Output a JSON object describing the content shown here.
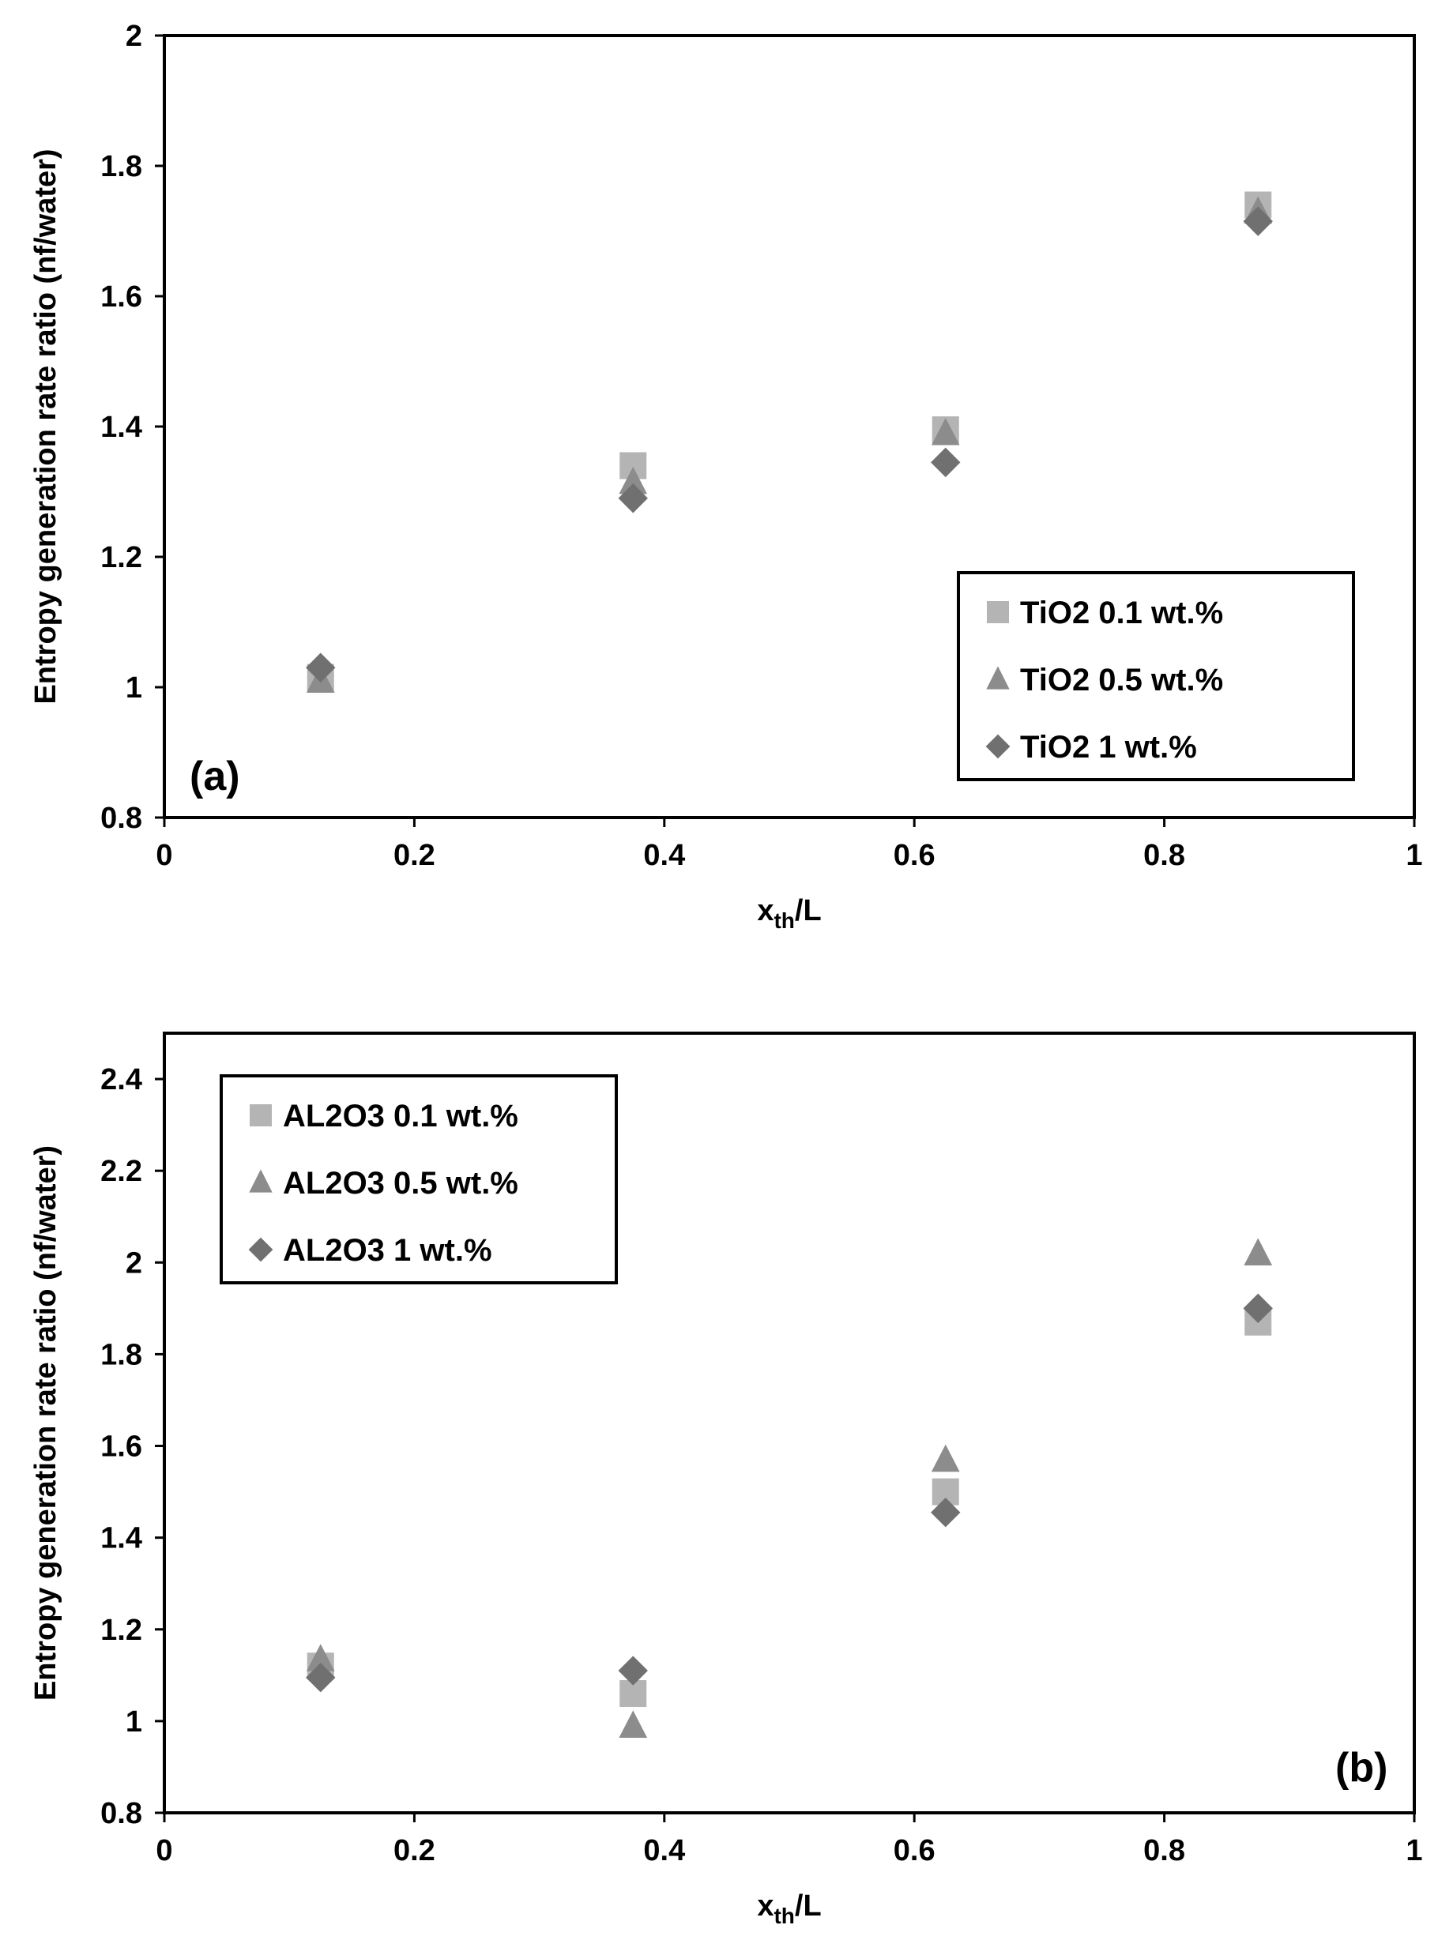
{
  "chart_data": [
    {
      "type": "scatter",
      "panel_label": "(a)",
      "xlabel": "x",
      "xlabel_sub": "th",
      "xlabel_suffix": "/L",
      "ylabel": "Entropy generation rate ratio (nf/water)",
      "xlim": [
        0,
        1
      ],
      "ylim": [
        0.8,
        2
      ],
      "xticks": [
        "0",
        "0.2",
        "0.4",
        "0.6",
        "0.8",
        "1"
      ],
      "xtick_values": [
        0,
        0.2,
        0.4,
        0.6,
        0.8,
        1
      ],
      "yticks": [
        "0.8",
        "1",
        "1.2",
        "1.4",
        "1.6",
        "1.8",
        "2"
      ],
      "ytick_values": [
        0.8,
        1.0,
        1.2,
        1.4,
        1.6,
        1.8,
        2.0
      ],
      "grid": false,
      "legend_position": "bottom-right",
      "series": [
        {
          "name": "TiO2 0.1 wt.%",
          "marker": "square",
          "color": "#b4b4b4",
          "x": [
            0.125,
            0.375,
            0.625,
            0.875
          ],
          "y": [
            1.015,
            1.34,
            1.395,
            1.74
          ]
        },
        {
          "name": "TiO2 0.5 wt.%",
          "marker": "triangle",
          "color": "#8c8c8c",
          "x": [
            0.125,
            0.375,
            0.625,
            0.875
          ],
          "y": [
            1.01,
            1.315,
            1.39,
            1.73
          ]
        },
        {
          "name": "TiO2 1 wt.%",
          "marker": "diamond",
          "color": "#707070",
          "x": [
            0.125,
            0.375,
            0.625,
            0.875
          ],
          "y": [
            1.03,
            1.29,
            1.345,
            1.715
          ]
        }
      ]
    },
    {
      "type": "scatter",
      "panel_label": "(b)",
      "xlabel": "x",
      "xlabel_sub": "th",
      "xlabel_suffix": "/L",
      "ylabel": "Entropy generation rate ratio (nf/water)",
      "xlim": [
        0,
        1
      ],
      "ylim": [
        0.8,
        2.5
      ],
      "xticks": [
        "0",
        "0.2",
        "0.4",
        "0.6",
        "0.8",
        "1"
      ],
      "xtick_values": [
        0,
        0.2,
        0.4,
        0.6,
        0.8,
        1
      ],
      "yticks": [
        "0.8",
        "1",
        "1.2",
        "1.4",
        "1.6",
        "1.8",
        "2",
        "2.2",
        "2.4"
      ],
      "ytick_values": [
        0.8,
        1.0,
        1.2,
        1.4,
        1.6,
        1.8,
        2.0,
        2.2,
        2.4
      ],
      "grid": false,
      "legend_position": "top-left",
      "series": [
        {
          "name": "AL2O3 0.1 wt.%",
          "marker": "square",
          "color": "#b4b4b4",
          "x": [
            0.125,
            0.375,
            0.625,
            0.875
          ],
          "y": [
            1.12,
            1.06,
            1.5,
            1.87
          ]
        },
        {
          "name": "AL2O3 0.5 wt.%",
          "marker": "triangle",
          "color": "#8c8c8c",
          "x": [
            0.125,
            0.375,
            0.625,
            0.875
          ],
          "y": [
            1.135,
            0.99,
            1.57,
            2.02
          ]
        },
        {
          "name": "AL2O3 1 wt.%",
          "marker": "diamond",
          "color": "#707070",
          "x": [
            0.125,
            0.375,
            0.625,
            0.875
          ],
          "y": [
            1.095,
            1.11,
            1.455,
            1.9
          ]
        }
      ]
    }
  ]
}
